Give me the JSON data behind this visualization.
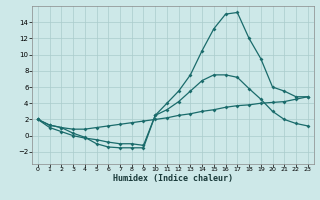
{
  "xlabel": "Humidex (Indice chaleur)",
  "bg_color": "#cde8e8",
  "grid_color": "#aacccc",
  "line_color": "#1a6b6b",
  "xlim": [
    -0.5,
    23.5
  ],
  "ylim": [
    -3.5,
    16
  ],
  "xticks": [
    0,
    1,
    2,
    3,
    4,
    5,
    6,
    7,
    8,
    9,
    10,
    11,
    12,
    13,
    14,
    15,
    16,
    17,
    18,
    19,
    20,
    21,
    22,
    23
  ],
  "yticks": [
    -2,
    0,
    2,
    4,
    6,
    8,
    10,
    12,
    14
  ],
  "line1_x": [
    0,
    1,
    2,
    3,
    4,
    5,
    6,
    7,
    8,
    9,
    10,
    11,
    12,
    13,
    14,
    15,
    16,
    17,
    18,
    19,
    20,
    21,
    22,
    23
  ],
  "line1_y": [
    2.0,
    1.0,
    0.5,
    0.0,
    -0.3,
    -0.5,
    -0.8,
    -1.0,
    -1.0,
    -1.2,
    2.5,
    4.0,
    5.5,
    7.5,
    10.5,
    13.2,
    15.0,
    15.2,
    12.0,
    9.5,
    6.0,
    5.5,
    4.8,
    4.8
  ],
  "line2_x": [
    0,
    1,
    2,
    3,
    4,
    5,
    6,
    7,
    8,
    9,
    10,
    11,
    12,
    13,
    14,
    15,
    16,
    17,
    18,
    19,
    20,
    21,
    22,
    23
  ],
  "line2_y": [
    2.0,
    1.3,
    1.0,
    0.8,
    0.8,
    1.0,
    1.2,
    1.4,
    1.6,
    1.8,
    2.0,
    2.2,
    2.5,
    2.7,
    3.0,
    3.2,
    3.5,
    3.7,
    3.8,
    4.0,
    4.1,
    4.2,
    4.5,
    4.8
  ],
  "line3_x": [
    0,
    1,
    2,
    3,
    4,
    5,
    6,
    7,
    8,
    9,
    10,
    11,
    12,
    13,
    14,
    15,
    16,
    17,
    18,
    19,
    20,
    21,
    22,
    23
  ],
  "line3_y": [
    2.0,
    1.3,
    1.0,
    0.3,
    -0.2,
    -1.0,
    -1.4,
    -1.5,
    -1.5,
    -1.5,
    2.5,
    3.2,
    4.2,
    5.5,
    6.8,
    7.5,
    7.5,
    7.2,
    5.8,
    4.5,
    3.0,
    2.0,
    1.5,
    1.2
  ]
}
